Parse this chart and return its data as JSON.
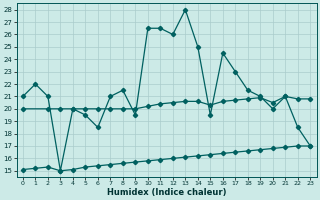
{
  "title": "",
  "xlabel": "Humidex (Indice chaleur)",
  "bg_color": "#cceae7",
  "grid_color": "#aacccc",
  "line_color": "#006060",
  "xlim": [
    -0.5,
    23.5
  ],
  "ylim": [
    14.5,
    28.5
  ],
  "yticks": [
    15,
    16,
    17,
    18,
    19,
    20,
    21,
    22,
    23,
    24,
    25,
    26,
    27,
    28
  ],
  "xticks": [
    0,
    1,
    2,
    3,
    4,
    5,
    6,
    7,
    8,
    9,
    10,
    11,
    12,
    13,
    14,
    15,
    16,
    17,
    18,
    19,
    20,
    21,
    22,
    23
  ],
  "line1_x": [
    0,
    1,
    2,
    3,
    4,
    5,
    6,
    7,
    8,
    9,
    10,
    11,
    12,
    13,
    14,
    15,
    16,
    17,
    18,
    19,
    20,
    21,
    22,
    23
  ],
  "line1_y": [
    21,
    22,
    21,
    15,
    20.0,
    19.5,
    18.5,
    21,
    21.5,
    19.5,
    26.5,
    26.5,
    26.0,
    28.0,
    25.0,
    19.5,
    24.5,
    23.0,
    21.5,
    21.0,
    20.0,
    21.0,
    18.5,
    17.0
  ],
  "line2_x": [
    0,
    2,
    3,
    4,
    5,
    6,
    7,
    8,
    9,
    10,
    11,
    12,
    13,
    14,
    15,
    16,
    17,
    18,
    19,
    20,
    21,
    22,
    23
  ],
  "line2_y": [
    20.0,
    20,
    20,
    20,
    20,
    20,
    20,
    20,
    20,
    20.2,
    20.4,
    20.5,
    20.6,
    20.6,
    20.3,
    20.6,
    20.7,
    20.8,
    20.9,
    20.5,
    21.0,
    20.8,
    20.8
  ],
  "line3_x": [
    0,
    1,
    2,
    3,
    4,
    5,
    6,
    7,
    8,
    9,
    10,
    11,
    12,
    13,
    14,
    15,
    16,
    17,
    18,
    19,
    20,
    21,
    22,
    23
  ],
  "line3_y": [
    15.1,
    15.2,
    15.3,
    15.0,
    15.1,
    15.3,
    15.4,
    15.5,
    15.6,
    15.7,
    15.8,
    15.9,
    16.0,
    16.1,
    16.2,
    16.3,
    16.4,
    16.5,
    16.6,
    16.7,
    16.8,
    16.9,
    17.0,
    17.0
  ]
}
